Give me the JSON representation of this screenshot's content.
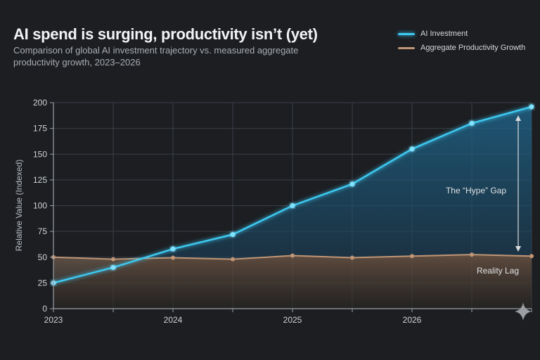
{
  "title": "AI spend is surging, productivity isn’t (yet)",
  "subtitle": "Comparison of global AI investment trajectory vs. measured aggregate productivity growth, 2023–2026",
  "legend": [
    {
      "label": "AI Investment",
      "color": "#3cc8f0"
    },
    {
      "label": "Aggregate Productivity Growth",
      "color": "#c09676"
    }
  ],
  "chart_data": {
    "type": "line",
    "ylabel": "Relative Value (Indexed)",
    "xlabel": "",
    "ylim": [
      0,
      200
    ],
    "xlim": [
      2023,
      2027
    ],
    "yticks": [
      "0",
      "25",
      "50",
      "75",
      "100",
      "125",
      "150",
      "175",
      "200"
    ],
    "xticks": [
      "2023",
      "2024",
      "2025",
      "2026"
    ],
    "grid": true,
    "legend_position": "top-right",
    "x": [
      2023,
      2023.5,
      2024,
      2024.5,
      2025,
      2025.5,
      2026,
      2026.5,
      2027
    ],
    "series": [
      {
        "name": "AI Investment",
        "color": "#3cc8f0",
        "values": [
          25,
          40,
          58,
          72,
          100,
          121,
          155,
          180,
          196
        ]
      },
      {
        "name": "Aggregate Productivity Growth",
        "color": "#c09676",
        "values": [
          50,
          48,
          49.5,
          48,
          51.5,
          49.5,
          51,
          52.5,
          51
        ]
      }
    ],
    "annotations": [
      {
        "text": "The “Hype” Gap"
      },
      {
        "text": "Reality Lag"
      }
    ]
  }
}
